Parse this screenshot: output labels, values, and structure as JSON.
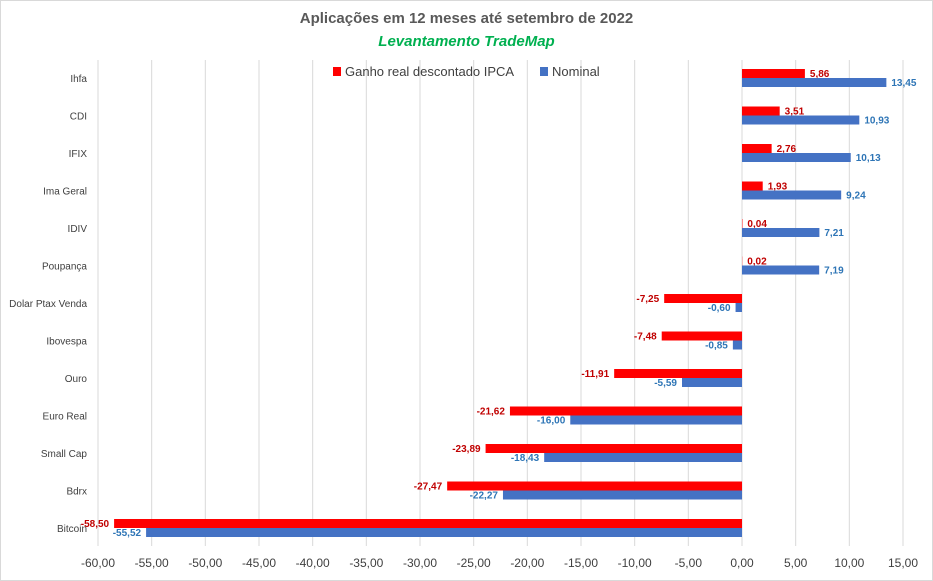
{
  "chart_data": {
    "type": "bar",
    "orientation": "horizontal",
    "title": "Aplicações em 12 meses até setembro de 2022",
    "subtitle": "Levantamento TradeMap",
    "categories": [
      "Ihfa",
      "CDI",
      "IFIX",
      "Ima Geral",
      "IDIV",
      "Poupança",
      "Dolar Ptax Venda",
      "Ibovespa",
      "Ouro",
      "Euro Real",
      "Small Cap",
      "Bdrx",
      "Bitcoin"
    ],
    "series": [
      {
        "name": "Ganho real descontado IPCA",
        "color": "#ff0000",
        "label_color": "#c00000",
        "values": [
          5.86,
          3.51,
          2.76,
          1.93,
          0.04,
          0.02,
          -7.25,
          -7.48,
          -11.91,
          -21.62,
          -23.89,
          -27.47,
          -58.5
        ]
      },
      {
        "name": "Nominal",
        "color": "#4472c4",
        "label_color": "#2e75b6",
        "values": [
          13.45,
          10.93,
          10.13,
          9.24,
          7.21,
          7.19,
          -0.6,
          -0.85,
          -5.59,
          -16.0,
          -18.43,
          -22.27,
          -55.52
        ]
      }
    ],
    "xlim": [
      -60,
      15
    ],
    "xticks": [
      -60,
      -55,
      -50,
      -45,
      -40,
      -35,
      -30,
      -25,
      -20,
      -15,
      -10,
      -5,
      0,
      5,
      10,
      15
    ],
    "tick_format": "2 decimals, comma separator",
    "grid": "vertical",
    "legend": "top"
  }
}
